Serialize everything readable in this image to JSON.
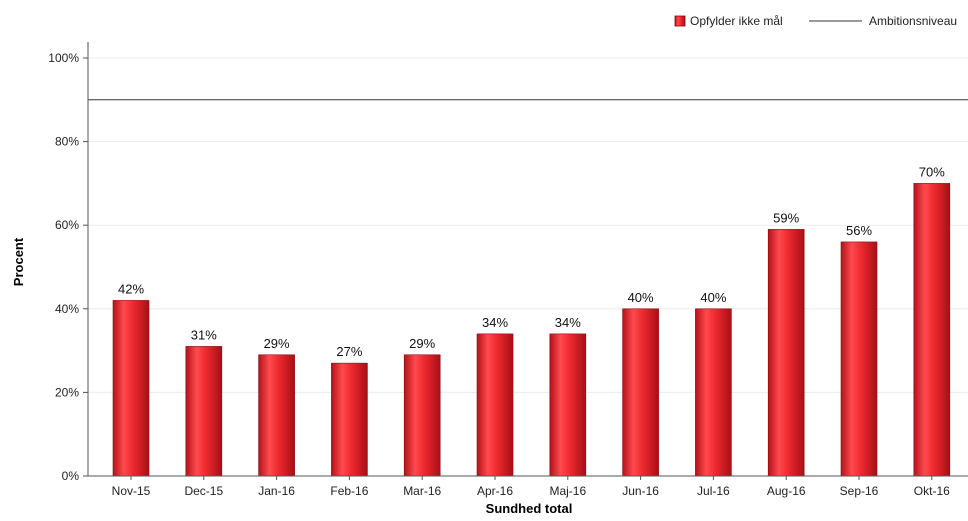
{
  "chart_data": {
    "type": "bar",
    "xlabel": "Sundhed total",
    "ylabel": "Procent",
    "categories": [
      "Nov-15",
      "Dec-15",
      "Jan-16",
      "Feb-16",
      "Mar-16",
      "Apr-16",
      "Maj-16",
      "Jun-16",
      "Jul-16",
      "Aug-16",
      "Sep-16",
      "Okt-16"
    ],
    "series": [
      {
        "name": "Opfylder ikke mål",
        "color": "#e8262b",
        "values": [
          42,
          31,
          29,
          27,
          29,
          34,
          34,
          40,
          40,
          59,
          56,
          70
        ],
        "labels": [
          "42%",
          "31%",
          "29%",
          "27%",
          "29%",
          "34%",
          "34%",
          "40%",
          "40%",
          "59%",
          "56%",
          "70%"
        ]
      }
    ],
    "reference_line": {
      "name": "Ambitionsniveau",
      "value": 90,
      "color": "#333333"
    },
    "ylim": [
      0,
      100
    ],
    "yticks": [
      0,
      20,
      40,
      60,
      80,
      100
    ],
    "ytick_labels": [
      "0%",
      "20%",
      "40%",
      "60%",
      "80%",
      "100%"
    ],
    "grid": true,
    "legend_position": "top-right"
  }
}
